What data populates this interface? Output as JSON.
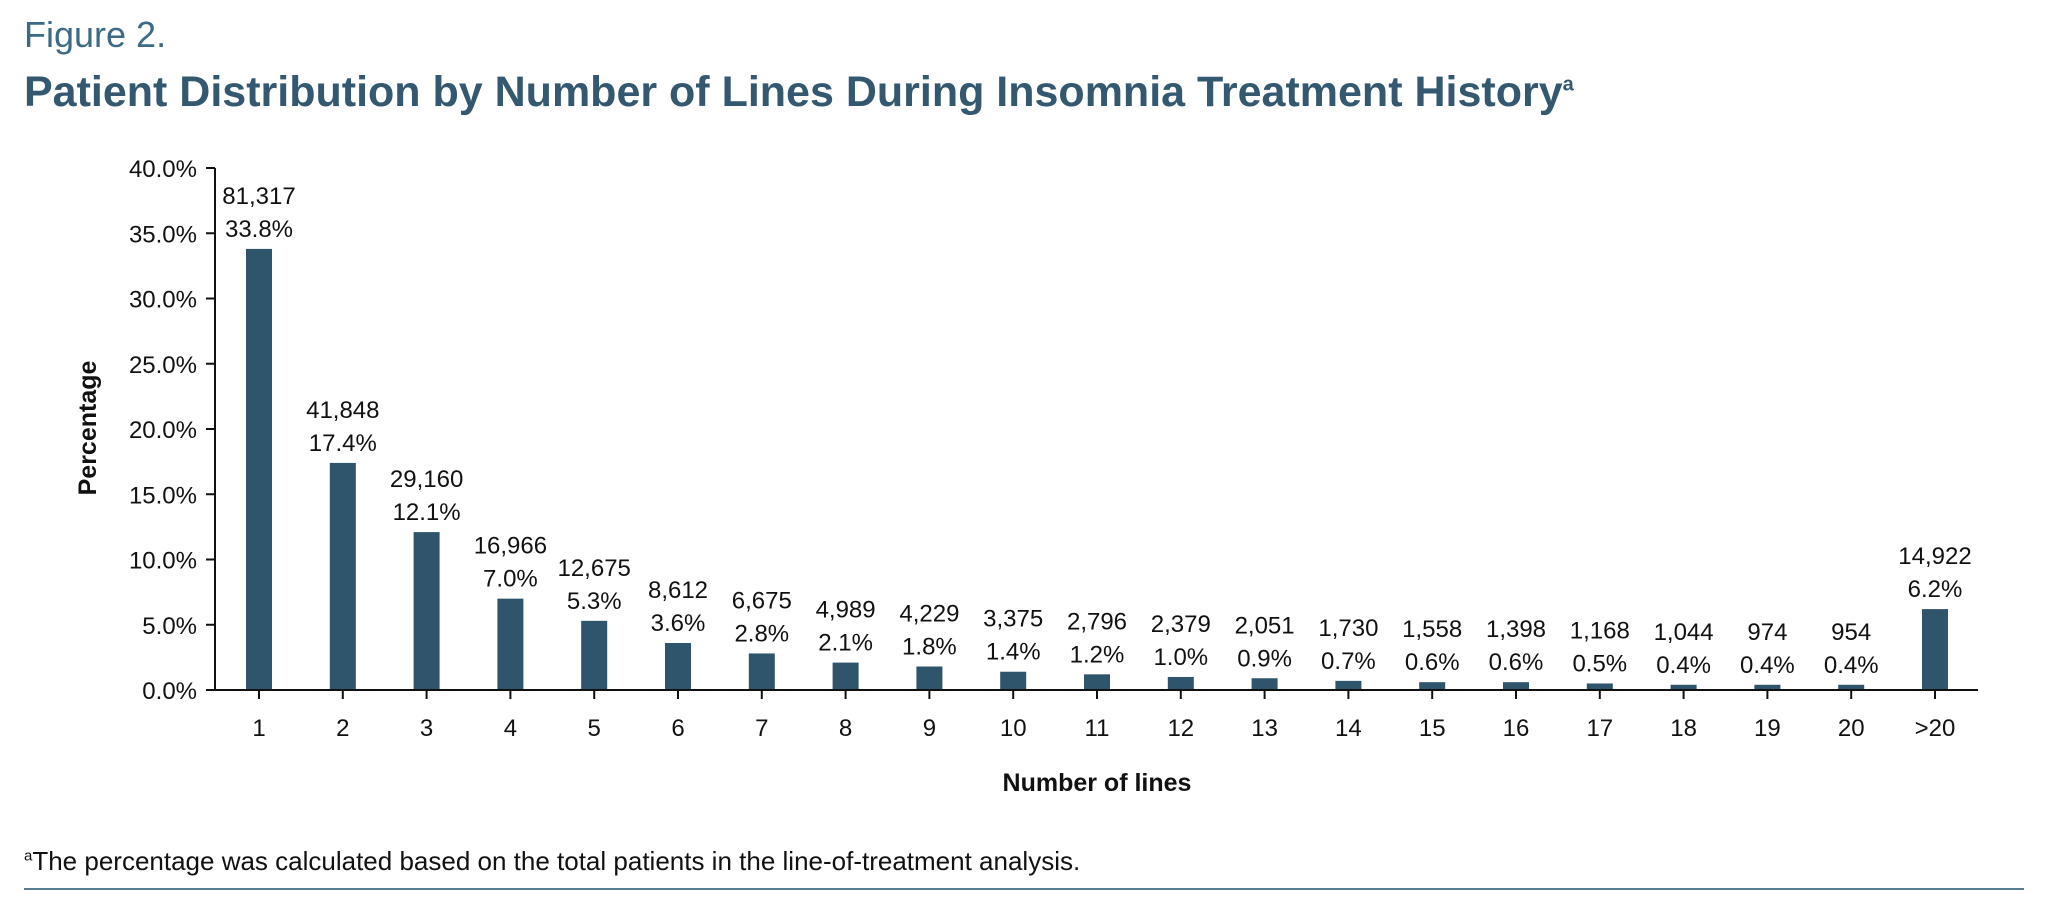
{
  "figure_label": "Figure 2.",
  "title": "Patient Distribution by Number of Lines During Insomnia Treatment History",
  "title_superscript": "a",
  "footnote": {
    "marker": "a",
    "text": "The percentage was calculated based on the total patients in the line-of-treatment analysis."
  },
  "colors": {
    "bar": "#2f556d",
    "title": "#33586f",
    "rule": "#5a7e92"
  },
  "chart_data": {
    "type": "bar",
    "title": "Patient Distribution by Number of Lines During Insomnia Treatment History",
    "xlabel": "Number of lines",
    "ylabel": "Percentage",
    "ylim": [
      0,
      40
    ],
    "yticks": [
      "0.0%",
      "5.0%",
      "10.0%",
      "15.0%",
      "20.0%",
      "25.0%",
      "30.0%",
      "35.0%",
      "40.0%"
    ],
    "grid": false,
    "legend": "none",
    "categories": [
      "1",
      "2",
      "3",
      "4",
      "5",
      "6",
      "7",
      "8",
      "9",
      "10",
      "11",
      "12",
      "13",
      "14",
      "15",
      "16",
      "17",
      "18",
      "19",
      "20",
      ">20"
    ],
    "values": [
      33.8,
      17.4,
      12.1,
      7.0,
      5.3,
      3.6,
      2.8,
      2.1,
      1.8,
      1.4,
      1.2,
      1.0,
      0.9,
      0.7,
      0.6,
      0.6,
      0.5,
      0.4,
      0.4,
      0.4,
      6.2
    ],
    "counts": [
      "81,317",
      "41,848",
      "29,160",
      "16,966",
      "12,675",
      "8,612",
      "6,675",
      "4,989",
      "4,229",
      "3,375",
      "2,796",
      "2,379",
      "2,051",
      "1,730",
      "1,558",
      "1,398",
      "1,168",
      "1,044",
      "974",
      "954",
      "14,922"
    ],
    "percent_labels": [
      "33.8%",
      "17.4%",
      "12.1%",
      "7.0%",
      "5.3%",
      "3.6%",
      "2.8%",
      "2.1%",
      "1.8%",
      "1.4%",
      "1.2%",
      "1.0%",
      "0.9%",
      "0.7%",
      "0.6%",
      "0.6%",
      "0.5%",
      "0.4%",
      "0.4%",
      "0.4%",
      "6.2%"
    ]
  }
}
